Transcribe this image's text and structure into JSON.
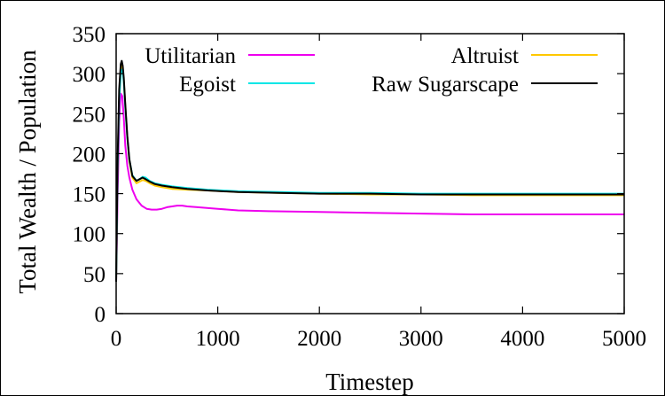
{
  "chart_data": {
    "type": "line",
    "xlabel": "Timestep",
    "ylabel": "Total Wealth / Population",
    "xlim": [
      0,
      5000
    ],
    "ylim": [
      0,
      350
    ],
    "xticks": [
      0,
      1000,
      2000,
      3000,
      4000,
      5000
    ],
    "yticks": [
      0,
      50,
      100,
      150,
      200,
      250,
      300,
      350
    ],
    "grid": false,
    "legend_position": "top",
    "series": [
      {
        "name": "Utilitarian",
        "color": "#ee00ee",
        "x": [
          0,
          15,
          30,
          45,
          60,
          75,
          90,
          110,
          130,
          160,
          200,
          250,
          300,
          350,
          400,
          450,
          500,
          550,
          600,
          650,
          700,
          800,
          1000,
          1200,
          1500,
          2000,
          2500,
          3000,
          3500,
          4000,
          4500,
          5000
        ],
        "y": [
          40,
          150,
          240,
          275,
          272,
          245,
          210,
          185,
          170,
          155,
          143,
          135,
          131,
          130,
          130,
          131,
          133,
          134,
          135,
          135,
          134,
          133,
          131,
          129,
          128,
          127,
          126,
          125,
          124,
          124,
          124,
          124
        ]
      },
      {
        "name": "Altruist",
        "color": "#ffc800",
        "x": [
          0,
          15,
          30,
          45,
          55,
          65,
          75,
          90,
          110,
          130,
          160,
          200,
          230,
          260,
          290,
          330,
          380,
          450,
          550,
          700,
          900,
          1200,
          1600,
          2000,
          2500,
          3000,
          3500,
          4000,
          4500,
          5000
        ],
        "y": [
          40,
          190,
          270,
          305,
          310,
          305,
          292,
          260,
          220,
          190,
          170,
          163,
          165,
          167,
          166,
          163,
          160,
          158,
          156,
          155,
          154,
          152,
          151,
          150,
          149,
          149,
          148,
          148,
          148,
          148
        ]
      },
      {
        "name": "Egoist",
        "color": "#00e6e6",
        "x": [
          0,
          15,
          30,
          45,
          55,
          65,
          75,
          90,
          110,
          130,
          160,
          200,
          230,
          260,
          290,
          330,
          380,
          450,
          550,
          700,
          900,
          1200,
          1600,
          2000,
          2500,
          3000,
          3500,
          4000,
          4500,
          5000
        ],
        "y": [
          40,
          185,
          265,
          300,
          305,
          302,
          290,
          258,
          220,
          192,
          173,
          166,
          168,
          171,
          170,
          166,
          163,
          161,
          159,
          157,
          155,
          153,
          152,
          151,
          151,
          150,
          150,
          150,
          150,
          150
        ]
      },
      {
        "name": "Raw Sugarscape",
        "color": "#000000",
        "x": [
          0,
          15,
          30,
          45,
          55,
          65,
          75,
          90,
          110,
          130,
          160,
          200,
          230,
          260,
          290,
          330,
          380,
          450,
          550,
          700,
          900,
          1200,
          1600,
          2000,
          2500,
          3000,
          3500,
          4000,
          4500,
          5000
        ],
        "y": [
          40,
          195,
          280,
          312,
          316,
          310,
          295,
          262,
          222,
          193,
          172,
          166,
          168,
          170,
          168,
          165,
          162,
          160,
          158,
          156,
          154,
          152,
          151,
          150,
          150,
          149,
          149,
          149,
          149,
          149
        ]
      }
    ]
  }
}
